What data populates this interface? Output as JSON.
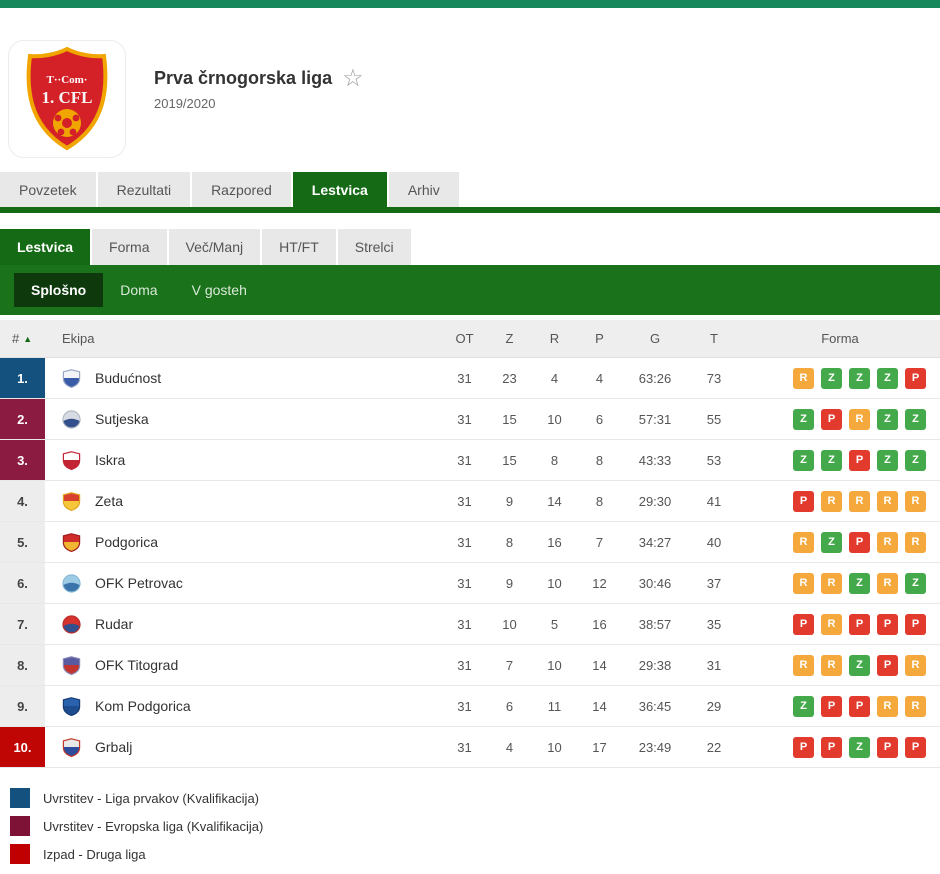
{
  "header": {
    "title": "Prva črnogorska liga",
    "season": "2019/2020",
    "star_icon": "☆",
    "logo": {
      "text_top": "T··Com·",
      "text_main": "1. CFL"
    }
  },
  "main_tabs": [
    {
      "label": "Povzetek",
      "active": false
    },
    {
      "label": "Rezultati",
      "active": false
    },
    {
      "label": "Razpored",
      "active": false
    },
    {
      "label": "Lestvica",
      "active": true
    },
    {
      "label": "Arhiv",
      "active": false
    }
  ],
  "sub_tabs": [
    {
      "label": "Lestvica",
      "active": true
    },
    {
      "label": "Forma",
      "active": false
    },
    {
      "label": "Več/Manj",
      "active": false
    },
    {
      "label": "HT/FT",
      "active": false
    },
    {
      "label": "Strelci",
      "active": false
    }
  ],
  "scope_tabs": [
    {
      "label": "Splošno",
      "active": true
    },
    {
      "label": "Doma",
      "active": false
    },
    {
      "label": "V gosteh",
      "active": false
    }
  ],
  "table": {
    "columns": {
      "rank": "#",
      "sort_arrow": "▲",
      "team": "Ekipa",
      "ot": "OT",
      "z": "Z",
      "r": "R",
      "p": "P",
      "g": "G",
      "t": "T",
      "form": "Forma"
    },
    "rows": [
      {
        "rank": "1.",
        "rank_bg": "#15517e",
        "rank_fg": "#ffffff",
        "team": "Budućnost",
        "ot": "31",
        "z": "23",
        "r": "4",
        "p": "4",
        "g": "63:26",
        "t": "73",
        "form": [
          "R",
          "Z",
          "Z",
          "Z",
          "P"
        ],
        "logo": {
          "shape": "shield",
          "top": "#f2f4f8",
          "bottom": "#3a5ba8",
          "border": "#9aa7c4"
        }
      },
      {
        "rank": "2.",
        "rank_bg": "#8c1b41",
        "rank_fg": "#ffffff",
        "team": "Sutjeska",
        "ot": "31",
        "z": "15",
        "r": "10",
        "p": "6",
        "g": "57:31",
        "t": "55",
        "form": [
          "Z",
          "P",
          "R",
          "Z",
          "Z"
        ],
        "logo": {
          "shape": "circle",
          "top": "#d7dbe2",
          "bottom": "#33508c",
          "border": "#aab1bd"
        }
      },
      {
        "rank": "3.",
        "rank_bg": "#8c1b41",
        "rank_fg": "#ffffff",
        "team": "Iskra",
        "ot": "31",
        "z": "15",
        "r": "8",
        "p": "8",
        "g": "43:33",
        "t": "53",
        "form": [
          "Z",
          "Z",
          "P",
          "Z",
          "Z"
        ],
        "logo": {
          "shape": "shield",
          "top": "#ffffff",
          "bottom": "#c32434",
          "border": "#c32434"
        }
      },
      {
        "rank": "4.",
        "rank_bg": "#ededed",
        "rank_fg": "#444444",
        "team": "Zeta",
        "ot": "31",
        "z": "9",
        "r": "14",
        "p": "8",
        "g": "29:30",
        "t": "41",
        "form": [
          "P",
          "R",
          "R",
          "R",
          "R"
        ],
        "logo": {
          "shape": "shield",
          "top": "#d8402f",
          "bottom": "#f5c63a",
          "border": "#e0a41f"
        }
      },
      {
        "rank": "5.",
        "rank_bg": "#ededed",
        "rank_fg": "#444444",
        "team": "Podgorica",
        "ot": "31",
        "z": "8",
        "r": "16",
        "p": "7",
        "g": "34:27",
        "t": "40",
        "form": [
          "R",
          "Z",
          "P",
          "R",
          "R"
        ],
        "logo": {
          "shape": "shield",
          "top": "#cf2b2b",
          "bottom": "#f0b531",
          "border": "#a21d1d"
        }
      },
      {
        "rank": "6.",
        "rank_bg": "#ededed",
        "rank_fg": "#444444",
        "team": "OFK Petrovac",
        "ot": "31",
        "z": "9",
        "r": "10",
        "p": "12",
        "g": "30:46",
        "t": "37",
        "form": [
          "R",
          "R",
          "Z",
          "R",
          "Z"
        ],
        "logo": {
          "shape": "circle",
          "top": "#9ecbe4",
          "bottom": "#3a74a8",
          "border": "#7fb4d4"
        }
      },
      {
        "rank": "7.",
        "rank_bg": "#ededed",
        "rank_fg": "#444444",
        "team": "Rudar",
        "ot": "31",
        "z": "10",
        "r": "5",
        "p": "16",
        "g": "38:57",
        "t": "35",
        "form": [
          "P",
          "R",
          "P",
          "P",
          "P"
        ],
        "logo": {
          "shape": "circle",
          "top": "#d6332e",
          "bottom": "#33508c",
          "border": "#b52a26"
        }
      },
      {
        "rank": "8.",
        "rank_bg": "#ededed",
        "rank_fg": "#444444",
        "team": "OFK Titograd",
        "ot": "31",
        "z": "7",
        "r": "10",
        "p": "14",
        "g": "29:38",
        "t": "31",
        "form": [
          "R",
          "R",
          "Z",
          "P",
          "R"
        ],
        "logo": {
          "shape": "shield",
          "top": "#5a5aa0",
          "bottom": "#c2342e",
          "border": "#8888b8"
        }
      },
      {
        "rank": "9.",
        "rank_bg": "#ededed",
        "rank_fg": "#444444",
        "team": "Kom Podgorica",
        "ot": "31",
        "z": "6",
        "r": "11",
        "p": "14",
        "g": "36:45",
        "t": "29",
        "form": [
          "Z",
          "P",
          "P",
          "R",
          "R"
        ],
        "logo": {
          "shape": "shield",
          "top": "#2a62ae",
          "bottom": "#1d4c8f",
          "border": "#163b73"
        }
      },
      {
        "rank": "10.",
        "rank_bg": "#c00505",
        "rank_fg": "#ffffff",
        "team": "Grbalj",
        "ot": "31",
        "z": "4",
        "r": "10",
        "p": "17",
        "g": "23:49",
        "t": "22",
        "form": [
          "P",
          "P",
          "Z",
          "P",
          "P"
        ],
        "logo": {
          "shape": "shield",
          "top": "#e8e8e8",
          "bottom": "#2b4d9b",
          "border": "#c0392b"
        }
      }
    ]
  },
  "form_colors": {
    "Z": "#44a94a",
    "R": "#f5a83c",
    "P": "#e23b2e"
  },
  "legend": [
    {
      "color": "#15517e",
      "label": "Uvrstitev - Liga prvakov (Kvalifikacija)"
    },
    {
      "color": "#7d1136",
      "label": "Uvrstitev - Evropska liga (Kvalifikacija)"
    },
    {
      "color": "#c00000",
      "label": "Izpad - Druga liga"
    }
  ]
}
